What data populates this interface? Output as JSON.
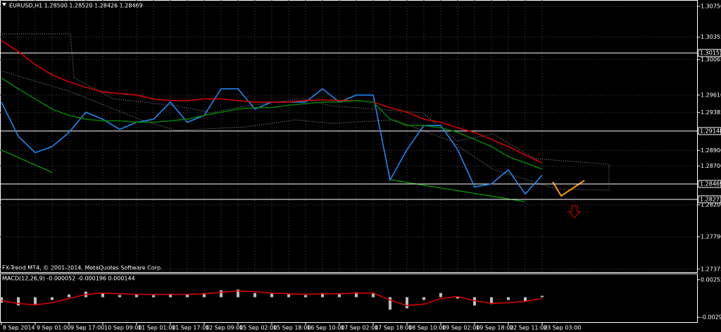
{
  "chart_data": [
    {
      "type": "line",
      "title": "EURUSD,H1  1.28500 1.28520 1.28426 1.28469",
      "footer": "FX-Trend MT4, © 2001-2014, MetaQuotes Software Corp.",
      "categories": [
        "8 Sep 2014",
        null,
        "9 Sep 01:00",
        null,
        "9 Sep 17:00",
        null,
        "10 Sep 09:00",
        null,
        "11 Sep 01:00",
        null,
        "11 Sep 17:00",
        null,
        "12 Sep 09:00",
        null,
        "15 Sep 02:00",
        null,
        "15 Sep 18:00",
        null,
        "16 Sep 10:00",
        null,
        "17 Sep 02:00",
        null,
        "17 Sep 18:00",
        null,
        "18 Sep 10:00",
        null,
        "19 Sep 02:00",
        null,
        "19 Sep 18:00",
        null,
        "22 Sep 11:00",
        null,
        "23 Sep 03:00"
      ],
      "series": [
        {
          "name": "Price",
          "color": "#1e90ff",
          "values": [
            1.2952,
            1.2908,
            1.2887,
            1.2895,
            1.2913,
            1.2939,
            1.293,
            1.2917,
            1.2926,
            1.293,
            1.2952,
            1.2926,
            1.2935,
            1.2969,
            1.2969,
            1.2943,
            1.2952,
            1.2952,
            1.2952,
            1.2969,
            1.2952,
            1.2961,
            1.2961,
            1.2852,
            1.2891,
            1.2922,
            1.2922,
            1.2891,
            1.2843,
            1.2847,
            1.2865,
            1.2834,
            1.2858
          ]
        },
        {
          "name": "MA slow",
          "color": "#e00000",
          "values": [
            1.3031,
            1.3017,
            1.3,
            1.2987,
            1.2978,
            1.2971,
            1.2965,
            1.2963,
            1.2961,
            1.2956,
            1.2954,
            1.2954,
            1.2956,
            1.2956,
            1.2954,
            1.2952,
            1.2952,
            1.2952,
            1.2954,
            1.2955,
            1.2954,
            1.2954,
            1.2952,
            1.2945,
            1.2939,
            1.293,
            1.2926,
            1.2919,
            1.2913,
            1.2904,
            1.2895,
            1.2884,
            1.2874
          ]
        },
        {
          "name": "MA fast",
          "color": "#008000",
          "values": [
            1.2983,
            1.2969,
            1.2956,
            1.2943,
            1.2935,
            1.293,
            1.2928,
            1.2928,
            1.2926,
            1.2926,
            1.2928,
            1.293,
            1.2935,
            1.2939,
            1.2943,
            1.2945,
            1.2945,
            1.2948,
            1.295,
            1.2952,
            1.2952,
            1.2954,
            1.2952,
            1.293,
            1.2922,
            1.2922,
            1.2919,
            1.2913,
            1.2904,
            1.2895,
            1.2882,
            1.2874,
            1.2866
          ]
        }
      ],
      "levels": [
        1.30151,
        1.29148,
        1.28469,
        1.28271
      ],
      "ylim": [
        1.27337,
        1.30831
      ],
      "yticks": [
        {
          "value": 1.3075,
          "label": "1.30750"
        },
        1.30355,
        1.30065,
        {
          "value": 1.2961,
          "label": "1.29610"
        },
        1.29385,
        {
          "value": 1.289,
          "label": "1.28900"
        },
        {
          "value": 1.287,
          "label": "1.28700"
        },
        {
          "value": 1.282,
          "label": "1.28200"
        },
        {
          "value": 1.2779,
          "label": "1.27790"
        },
        1.27375
      ],
      "grid": true
    },
    {
      "type": "macd",
      "title": "MACD(12,26,9) -0.000052 -0.000196 0.000144",
      "series": [
        {
          "name": "Histogram",
          "color": "#c0c0c0",
          "values": [
            -0.0008,
            -0.0012,
            -0.001,
            -0.0004,
            0.0004,
            0.0008,
            0.0006,
            0.0003,
            0.0004,
            0.0003,
            0.0005,
            0.0004,
            0.0006,
            0.001,
            0.0011,
            0.0006,
            0.0005,
            0.0004,
            0.0003,
            0.0006,
            0.0005,
            0.0007,
            0.0006,
            -0.0018,
            -0.0016,
            -0.0004,
            0.0006,
            -0.0002,
            -0.0012,
            -0.001,
            -0.0004,
            -0.0006,
            0.0002
          ]
        },
        {
          "name": "Signal",
          "color": "#e00000",
          "values": [
            -0.0005,
            -0.0009,
            -0.0011,
            -0.0008,
            -0.0002,
            0.0004,
            0.0006,
            0.0005,
            0.0004,
            0.0004,
            0.0004,
            0.0004,
            0.0005,
            0.0007,
            0.0009,
            0.0008,
            0.0006,
            0.0005,
            0.0004,
            0.0005,
            0.0005,
            0.0006,
            0.0006,
            -0.0004,
            -0.0012,
            -0.001,
            -0.0002,
            0.0001,
            -0.0005,
            -0.0009,
            -0.0008,
            -0.0006,
            -0.0002
          ]
        }
      ],
      "ylim": [
        -0.00359,
        0.00331
      ],
      "yticks": [
        0.00252,
        {
          "value": -0.0029,
          "label": "-0.00290"
        }
      ]
    }
  ]
}
